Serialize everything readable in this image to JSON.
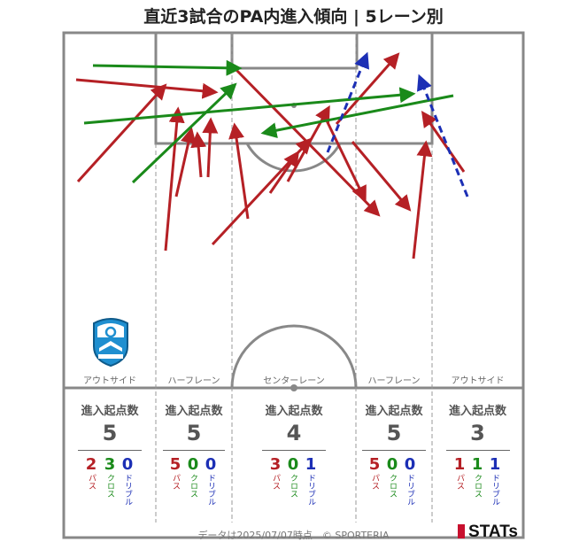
{
  "title": "直近3試合のPA内進入傾向 | 5レーン別",
  "colors": {
    "pass": "#b52025",
    "cross": "#1a8a1a",
    "dribble": "#1c2fb5",
    "line": "#888888"
  },
  "lanes": [
    {
      "label": "アウトサイド",
      "stat_head": "進入起点数",
      "total": "5",
      "pass": "2",
      "cross": "3",
      "dribble": "0"
    },
    {
      "label": "ハーフレーン",
      "stat_head": "進入起点数",
      "total": "5",
      "pass": "5",
      "cross": "0",
      "dribble": "0"
    },
    {
      "label": "センターレーン",
      "stat_head": "進入起点数",
      "total": "4",
      "pass": "3",
      "cross": "0",
      "dribble": "1"
    },
    {
      "label": "ハーフレーン",
      "stat_head": "進入起点数",
      "total": "5",
      "pass": "5",
      "cross": "0",
      "dribble": "0"
    },
    {
      "label": "アウトサイド",
      "stat_head": "進入起点数",
      "total": "3",
      "pass": "1",
      "cross": "1",
      "dribble": "1"
    }
  ],
  "type_labels": {
    "pass": "パス",
    "cross": "クロス",
    "dribble": "ドリブル"
  },
  "logo_text": "azul claro",
  "footer": "データは2025/07/07時点　© SPORTERIA",
  "brand": "STATs",
  "chart_data": {
    "type": "scatter",
    "title": "直近3試合のPA内進入傾向 | 5レーン別",
    "series_kinds": [
      "pass",
      "cross",
      "dribble"
    ],
    "arrows": [
      {
        "kind": "pass",
        "from": [
          88,
          205
        ],
        "to": [
          186,
          97
        ]
      },
      {
        "kind": "pass",
        "from": [
          86,
          90
        ],
        "to": [
          243,
          104
        ]
      },
      {
        "kind": "pass",
        "from": [
          187,
          283
        ],
        "to": [
          201,
          124
        ]
      },
      {
        "kind": "pass",
        "from": [
          199,
          222
        ],
        "to": [
          216,
          147
        ]
      },
      {
        "kind": "pass",
        "from": [
          227,
          200
        ],
        "to": [
          223,
          152
        ]
      },
      {
        "kind": "pass",
        "from": [
          235,
          200
        ],
        "to": [
          238,
          136
        ]
      },
      {
        "kind": "pass",
        "from": [
          266,
          78
        ],
        "to": [
          427,
          242
        ]
      },
      {
        "kind": "pass",
        "from": [
          280,
          247
        ],
        "to": [
          265,
          142
        ]
      },
      {
        "kind": "pass",
        "from": [
          240,
          276
        ],
        "to": [
          350,
          158
        ]
      },
      {
        "kind": "pass",
        "from": [
          305,
          218
        ],
        "to": [
          336,
          173
        ]
      },
      {
        "kind": "pass",
        "from": [
          325,
          205
        ],
        "to": [
          371,
          122
        ]
      },
      {
        "kind": "pass",
        "from": [
          366,
          130
        ],
        "to": [
          412,
          225
        ]
      },
      {
        "kind": "pass",
        "from": [
          380,
          140
        ],
        "to": [
          449,
          62
        ]
      },
      {
        "kind": "pass",
        "from": [
          398,
          160
        ],
        "to": [
          462,
          236
        ]
      },
      {
        "kind": "pass",
        "from": [
          467,
          292
        ],
        "to": [
          481,
          162
        ]
      },
      {
        "kind": "pass",
        "from": [
          524,
          194
        ],
        "to": [
          478,
          128
        ]
      },
      {
        "kind": "cross",
        "from": [
          105,
          74
        ],
        "to": [
          270,
          77
        ]
      },
      {
        "kind": "cross",
        "from": [
          150,
          206
        ],
        "to": [
          265,
          96
        ]
      },
      {
        "kind": "cross",
        "from": [
          95,
          139
        ],
        "to": [
          466,
          106
        ]
      },
      {
        "kind": "cross",
        "from": [
          512,
          108
        ],
        "to": [
          298,
          150
        ]
      },
      {
        "kind": "dribble",
        "from": [
          370,
          172
        ],
        "to": [
          414,
          62
        ]
      },
      {
        "kind": "dribble",
        "from": [
          528,
          222
        ],
        "to": [
          474,
          87
        ]
      }
    ]
  }
}
